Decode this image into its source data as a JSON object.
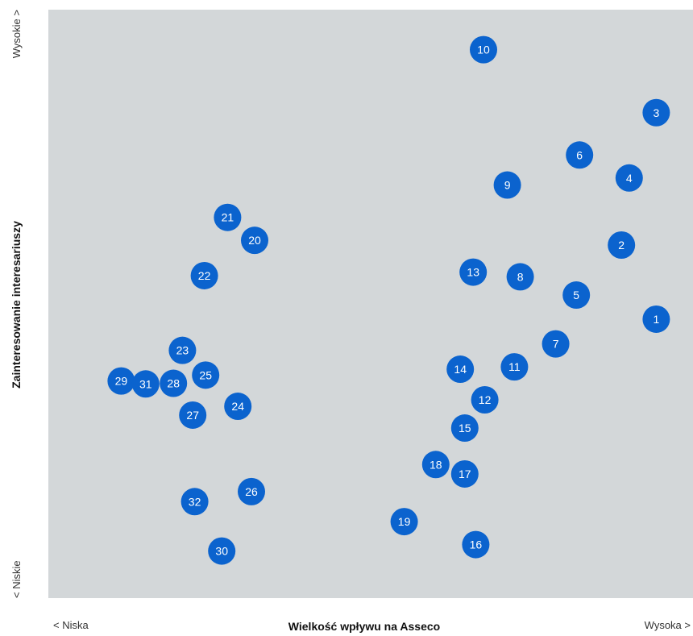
{
  "chart_data": {
    "type": "scatter",
    "title": "",
    "xlabel": "Wielkość wpływu na Asseco",
    "ylabel": "Zainteresowanie interesariuszy",
    "x_low_label": "< Niska",
    "x_high_label": "Wysoka >",
    "y_low_label": "< Niskie",
    "y_high_label": "Wysokie >",
    "xlim": [
      0,
      100
    ],
    "ylim": [
      0,
      100
    ],
    "grid": false,
    "colors": {
      "plot_bg": "#d3d7d9",
      "marker": "#0b63ce",
      "marker_text": "#ffffff"
    },
    "points": [
      {
        "label": "1",
        "x": 94.3,
        "y": 47.4
      },
      {
        "label": "2",
        "x": 88.9,
        "y": 60.0
      },
      {
        "label": "3",
        "x": 94.3,
        "y": 82.5
      },
      {
        "label": "4",
        "x": 90.1,
        "y": 71.4
      },
      {
        "label": "5",
        "x": 81.9,
        "y": 51.5
      },
      {
        "label": "6",
        "x": 82.4,
        "y": 75.3
      },
      {
        "label": "7",
        "x": 78.7,
        "y": 43.2
      },
      {
        "label": "8",
        "x": 73.2,
        "y": 54.6
      },
      {
        "label": "9",
        "x": 71.2,
        "y": 70.2
      },
      {
        "label": "10",
        "x": 67.5,
        "y": 93.2
      },
      {
        "label": "11",
        "x": 72.3,
        "y": 39.3
      },
      {
        "label": "12",
        "x": 67.7,
        "y": 33.7
      },
      {
        "label": "13",
        "x": 65.9,
        "y": 55.4
      },
      {
        "label": "14",
        "x": 63.9,
        "y": 38.9
      },
      {
        "label": "15",
        "x": 64.6,
        "y": 28.9
      },
      {
        "label": "16",
        "x": 66.3,
        "y": 9.1
      },
      {
        "label": "17",
        "x": 64.6,
        "y": 21.1
      },
      {
        "label": "18",
        "x": 60.1,
        "y": 22.7
      },
      {
        "label": "19",
        "x": 55.2,
        "y": 13.0
      },
      {
        "label": "20",
        "x": 32.0,
        "y": 60.8
      },
      {
        "label": "21",
        "x": 27.8,
        "y": 64.7
      },
      {
        "label": "22",
        "x": 24.2,
        "y": 54.8
      },
      {
        "label": "23",
        "x": 20.8,
        "y": 42.1
      },
      {
        "label": "24",
        "x": 29.4,
        "y": 32.6
      },
      {
        "label": "25",
        "x": 24.4,
        "y": 37.9
      },
      {
        "label": "26",
        "x": 31.5,
        "y": 18.1
      },
      {
        "label": "27",
        "x": 22.4,
        "y": 31.1
      },
      {
        "label": "28",
        "x": 19.4,
        "y": 36.5
      },
      {
        "label": "29",
        "x": 11.3,
        "y": 36.9
      },
      {
        "label": "30",
        "x": 26.9,
        "y": 8.0
      },
      {
        "label": "31",
        "x": 15.1,
        "y": 36.4
      },
      {
        "label": "32",
        "x": 22.7,
        "y": 16.4
      }
    ]
  }
}
